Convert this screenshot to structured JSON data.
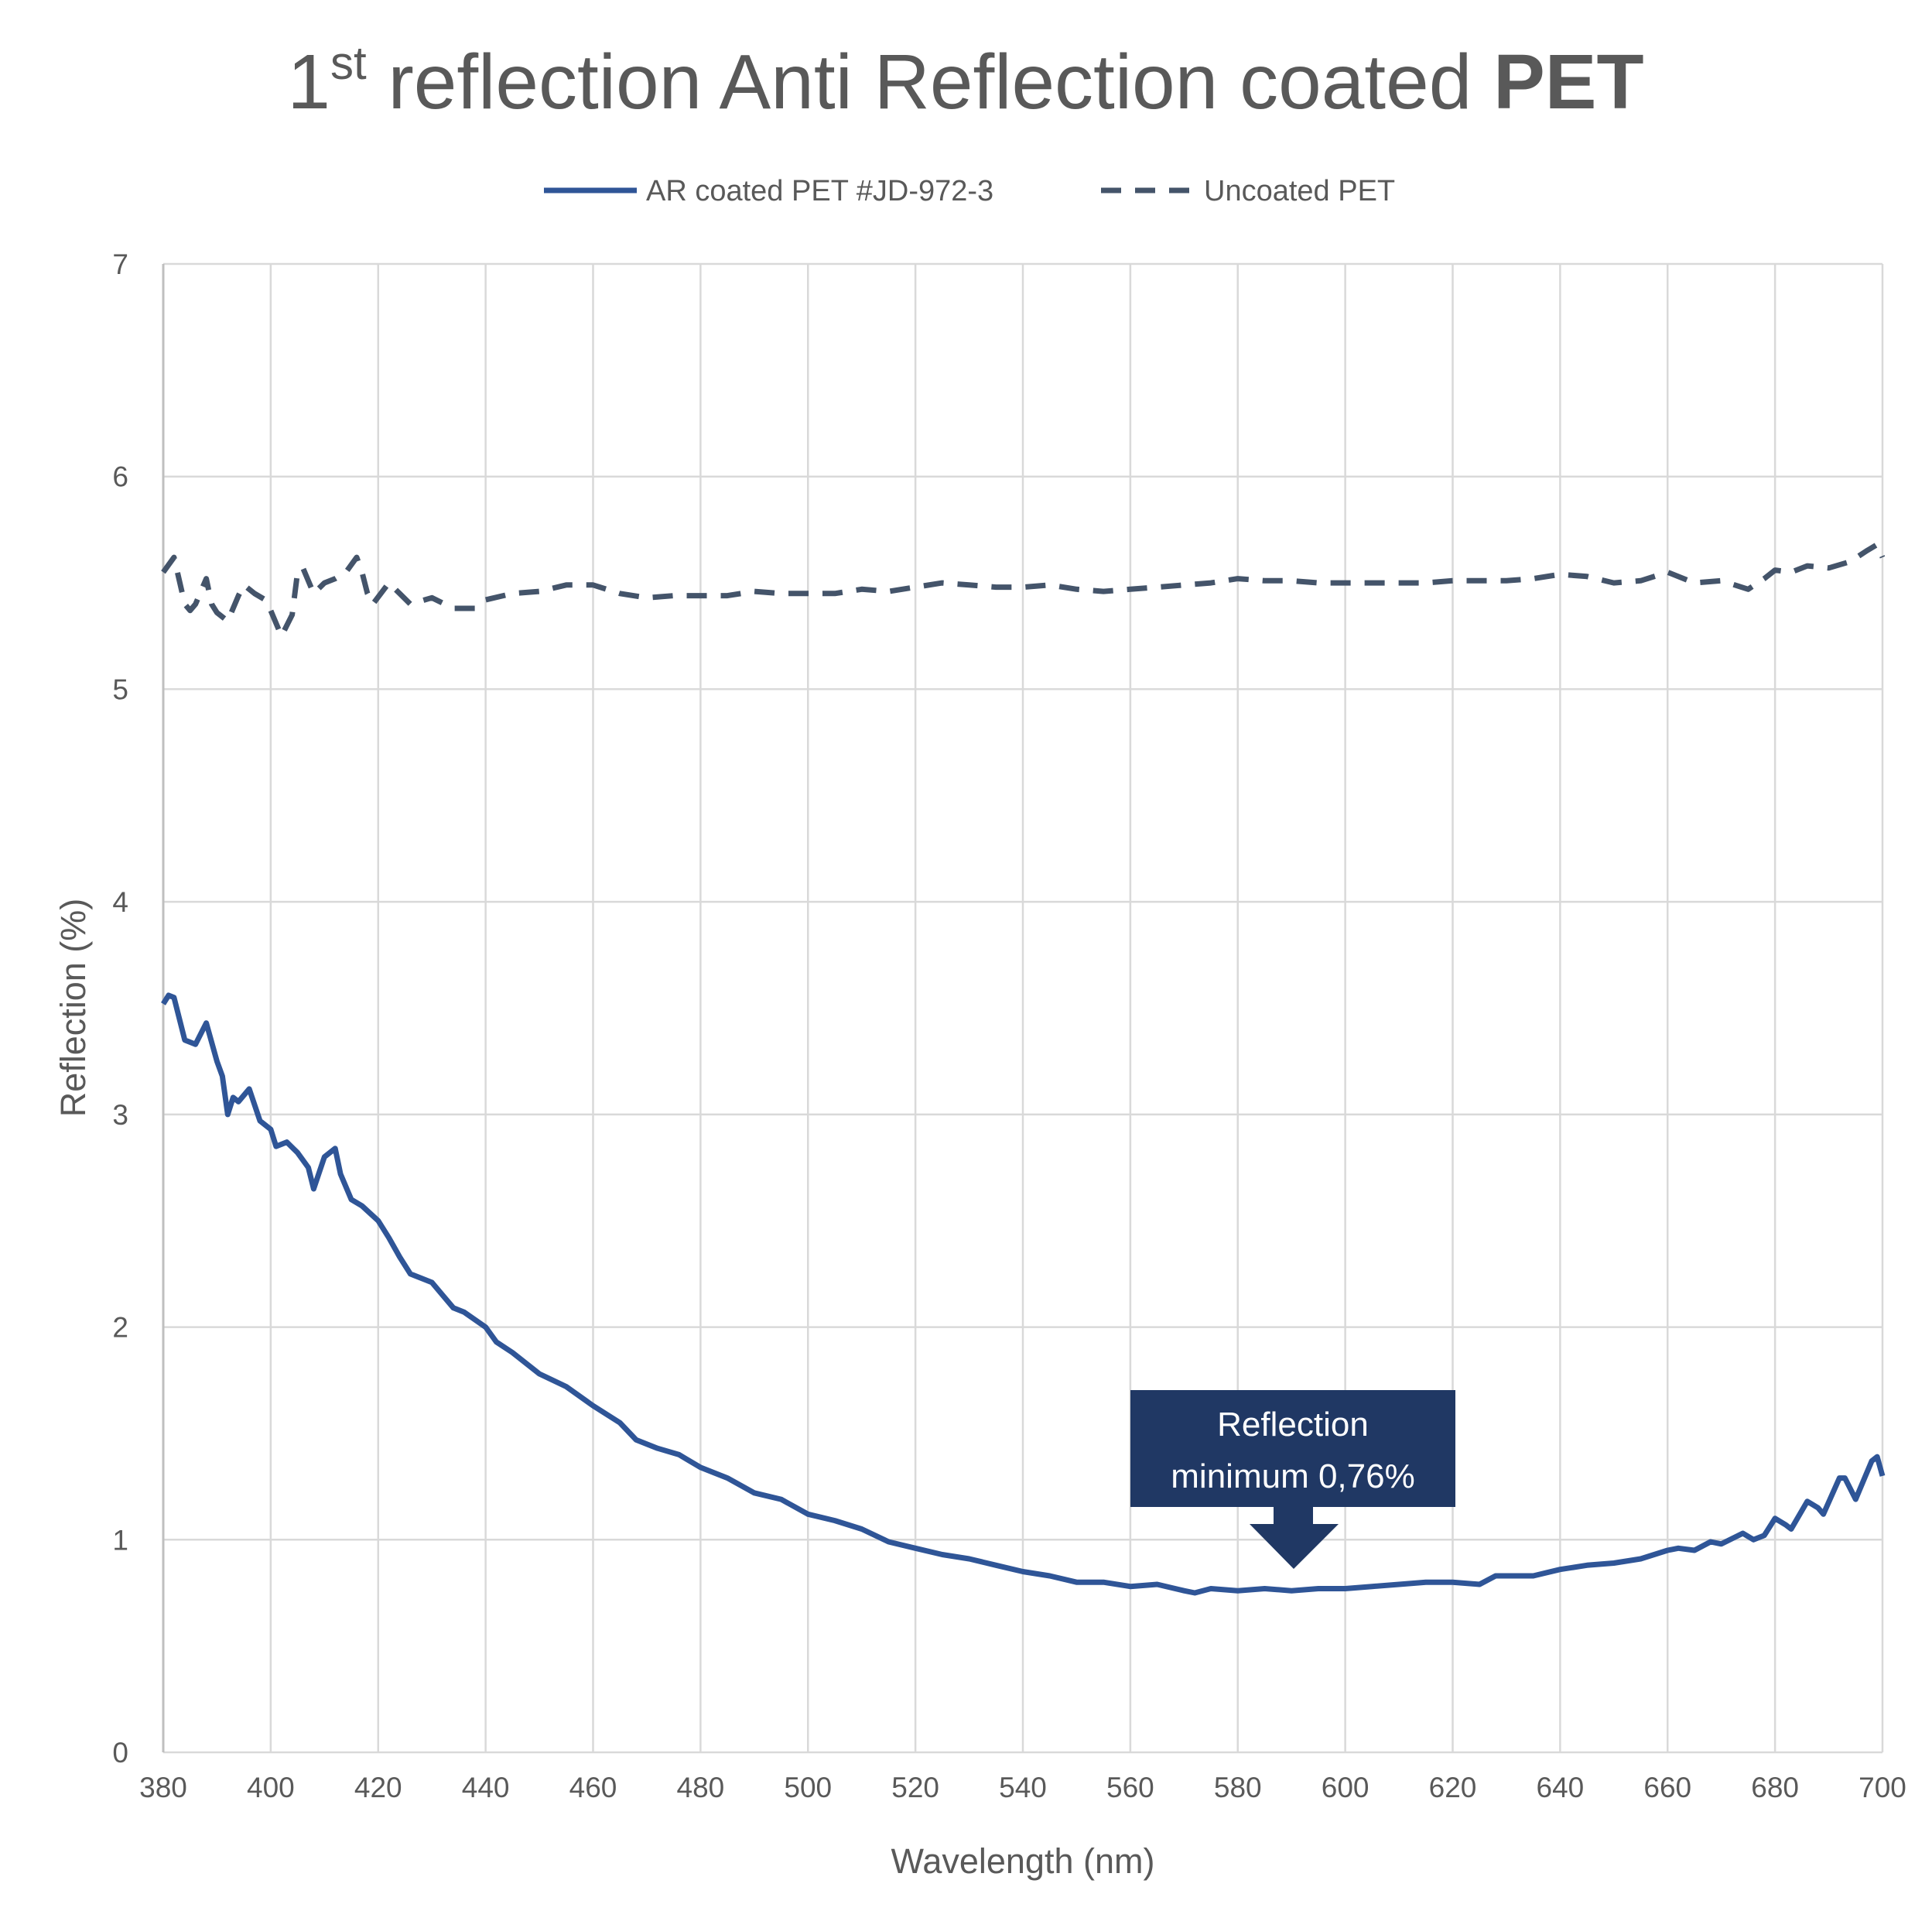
{
  "chart_data": {
    "type": "line",
    "title": {
      "prefix": "1",
      "superscript": "st",
      "main": " reflection Anti Reflection coated ",
      "bold": "PET"
    },
    "xlabel": "Wavelength (nm)",
    "ylabel": "Reflection (%)",
    "xlim": [
      380,
      700
    ],
    "ylim": [
      0,
      7
    ],
    "xticks": [
      380,
      400,
      420,
      440,
      460,
      480,
      500,
      520,
      540,
      560,
      580,
      600,
      620,
      640,
      660,
      680,
      700
    ],
    "yticks": [
      0,
      1,
      2,
      3,
      4,
      5,
      6,
      7
    ],
    "grid": true,
    "legend_position": "top",
    "annotation": {
      "line1": "Reflection",
      "line2": "minimum 0,76%",
      "x": 590,
      "y": 0.76,
      "color": "#203864"
    },
    "series": [
      {
        "name": "AR coated PET #JD-972-3",
        "style": "solid",
        "color": "#2F5597",
        "x": [
          380,
          381,
          382,
          384,
          386,
          388,
          390,
          391,
          392,
          393,
          394,
          396,
          398,
          400,
          401,
          403,
          405,
          407,
          408,
          410,
          412,
          413,
          415,
          417,
          420,
          422,
          424,
          426,
          428,
          430,
          432,
          434,
          436,
          440,
          442,
          445,
          450,
          455,
          460,
          465,
          468,
          472,
          476,
          480,
          485,
          490,
          495,
          500,
          505,
          510,
          515,
          520,
          525,
          530,
          535,
          540,
          545,
          550,
          555,
          560,
          565,
          570,
          572,
          575,
          580,
          585,
          590,
          595,
          600,
          605,
          610,
          615,
          620,
          625,
          628,
          632,
          635,
          640,
          645,
          650,
          655,
          660,
          662,
          665,
          668,
          670,
          674,
          676,
          678,
          680,
          682,
          683,
          686,
          688,
          689,
          692,
          693,
          695,
          698,
          699,
          700
        ],
        "y": [
          3.52,
          3.56,
          3.55,
          3.35,
          3.33,
          3.43,
          3.25,
          3.18,
          3.0,
          3.08,
          3.06,
          3.12,
          2.97,
          2.93,
          2.85,
          2.87,
          2.82,
          2.75,
          2.65,
          2.8,
          2.84,
          2.72,
          2.6,
          2.57,
          2.5,
          2.42,
          2.33,
          2.25,
          2.23,
          2.21,
          2.15,
          2.09,
          2.07,
          2.0,
          1.93,
          1.88,
          1.78,
          1.72,
          1.63,
          1.55,
          1.47,
          1.43,
          1.4,
          1.34,
          1.29,
          1.22,
          1.19,
          1.12,
          1.09,
          1.05,
          0.99,
          0.96,
          0.93,
          0.91,
          0.88,
          0.85,
          0.83,
          0.8,
          0.8,
          0.78,
          0.79,
          0.76,
          0.75,
          0.77,
          0.76,
          0.77,
          0.76,
          0.77,
          0.77,
          0.78,
          0.79,
          0.8,
          0.8,
          0.79,
          0.83,
          0.83,
          0.83,
          0.86,
          0.88,
          0.89,
          0.91,
          0.95,
          0.96,
          0.95,
          0.99,
          0.98,
          1.03,
          1.0,
          1.02,
          1.1,
          1.07,
          1.05,
          1.18,
          1.15,
          1.12,
          1.29,
          1.29,
          1.19,
          1.37,
          1.39,
          1.3
        ]
      },
      {
        "name": "Uncoated PET",
        "style": "dashed",
        "color": "#44546A",
        "x": [
          380,
          382,
          384,
          385,
          386,
          388,
          389,
          390,
          392,
          394,
          395,
          397,
          399,
          400,
          402,
          404,
          405,
          406,
          408,
          410,
          412,
          414,
          416,
          417,
          418,
          419,
          422,
          424,
          426,
          430,
          434,
          438,
          440,
          445,
          450,
          455,
          460,
          465,
          470,
          475,
          480,
          485,
          490,
          495,
          500,
          505,
          510,
          515,
          520,
          525,
          530,
          535,
          540,
          545,
          550,
          555,
          560,
          565,
          570,
          575,
          580,
          585,
          590,
          595,
          600,
          605,
          610,
          615,
          620,
          625,
          630,
          635,
          640,
          645,
          650,
          655,
          660,
          665,
          670,
          675,
          678,
          680,
          683,
          686,
          690,
          694,
          697,
          699,
          700
        ],
        "y": [
          5.55,
          5.62,
          5.4,
          5.37,
          5.4,
          5.52,
          5.4,
          5.36,
          5.32,
          5.44,
          5.49,
          5.45,
          5.42,
          5.37,
          5.25,
          5.35,
          5.55,
          5.57,
          5.45,
          5.5,
          5.52,
          5.55,
          5.62,
          5.55,
          5.45,
          5.4,
          5.5,
          5.45,
          5.4,
          5.43,
          5.38,
          5.38,
          5.42,
          5.45,
          5.46,
          5.49,
          5.49,
          5.45,
          5.43,
          5.44,
          5.44,
          5.44,
          5.46,
          5.45,
          5.45,
          5.45,
          5.47,
          5.46,
          5.48,
          5.5,
          5.49,
          5.48,
          5.48,
          5.49,
          5.47,
          5.46,
          5.47,
          5.48,
          5.49,
          5.5,
          5.52,
          5.51,
          5.51,
          5.5,
          5.5,
          5.5,
          5.5,
          5.5,
          5.51,
          5.51,
          5.51,
          5.52,
          5.54,
          5.53,
          5.5,
          5.51,
          5.55,
          5.5,
          5.51,
          5.47,
          5.52,
          5.56,
          5.55,
          5.58,
          5.57,
          5.6,
          5.65,
          5.68,
          5.62
        ]
      }
    ]
  }
}
